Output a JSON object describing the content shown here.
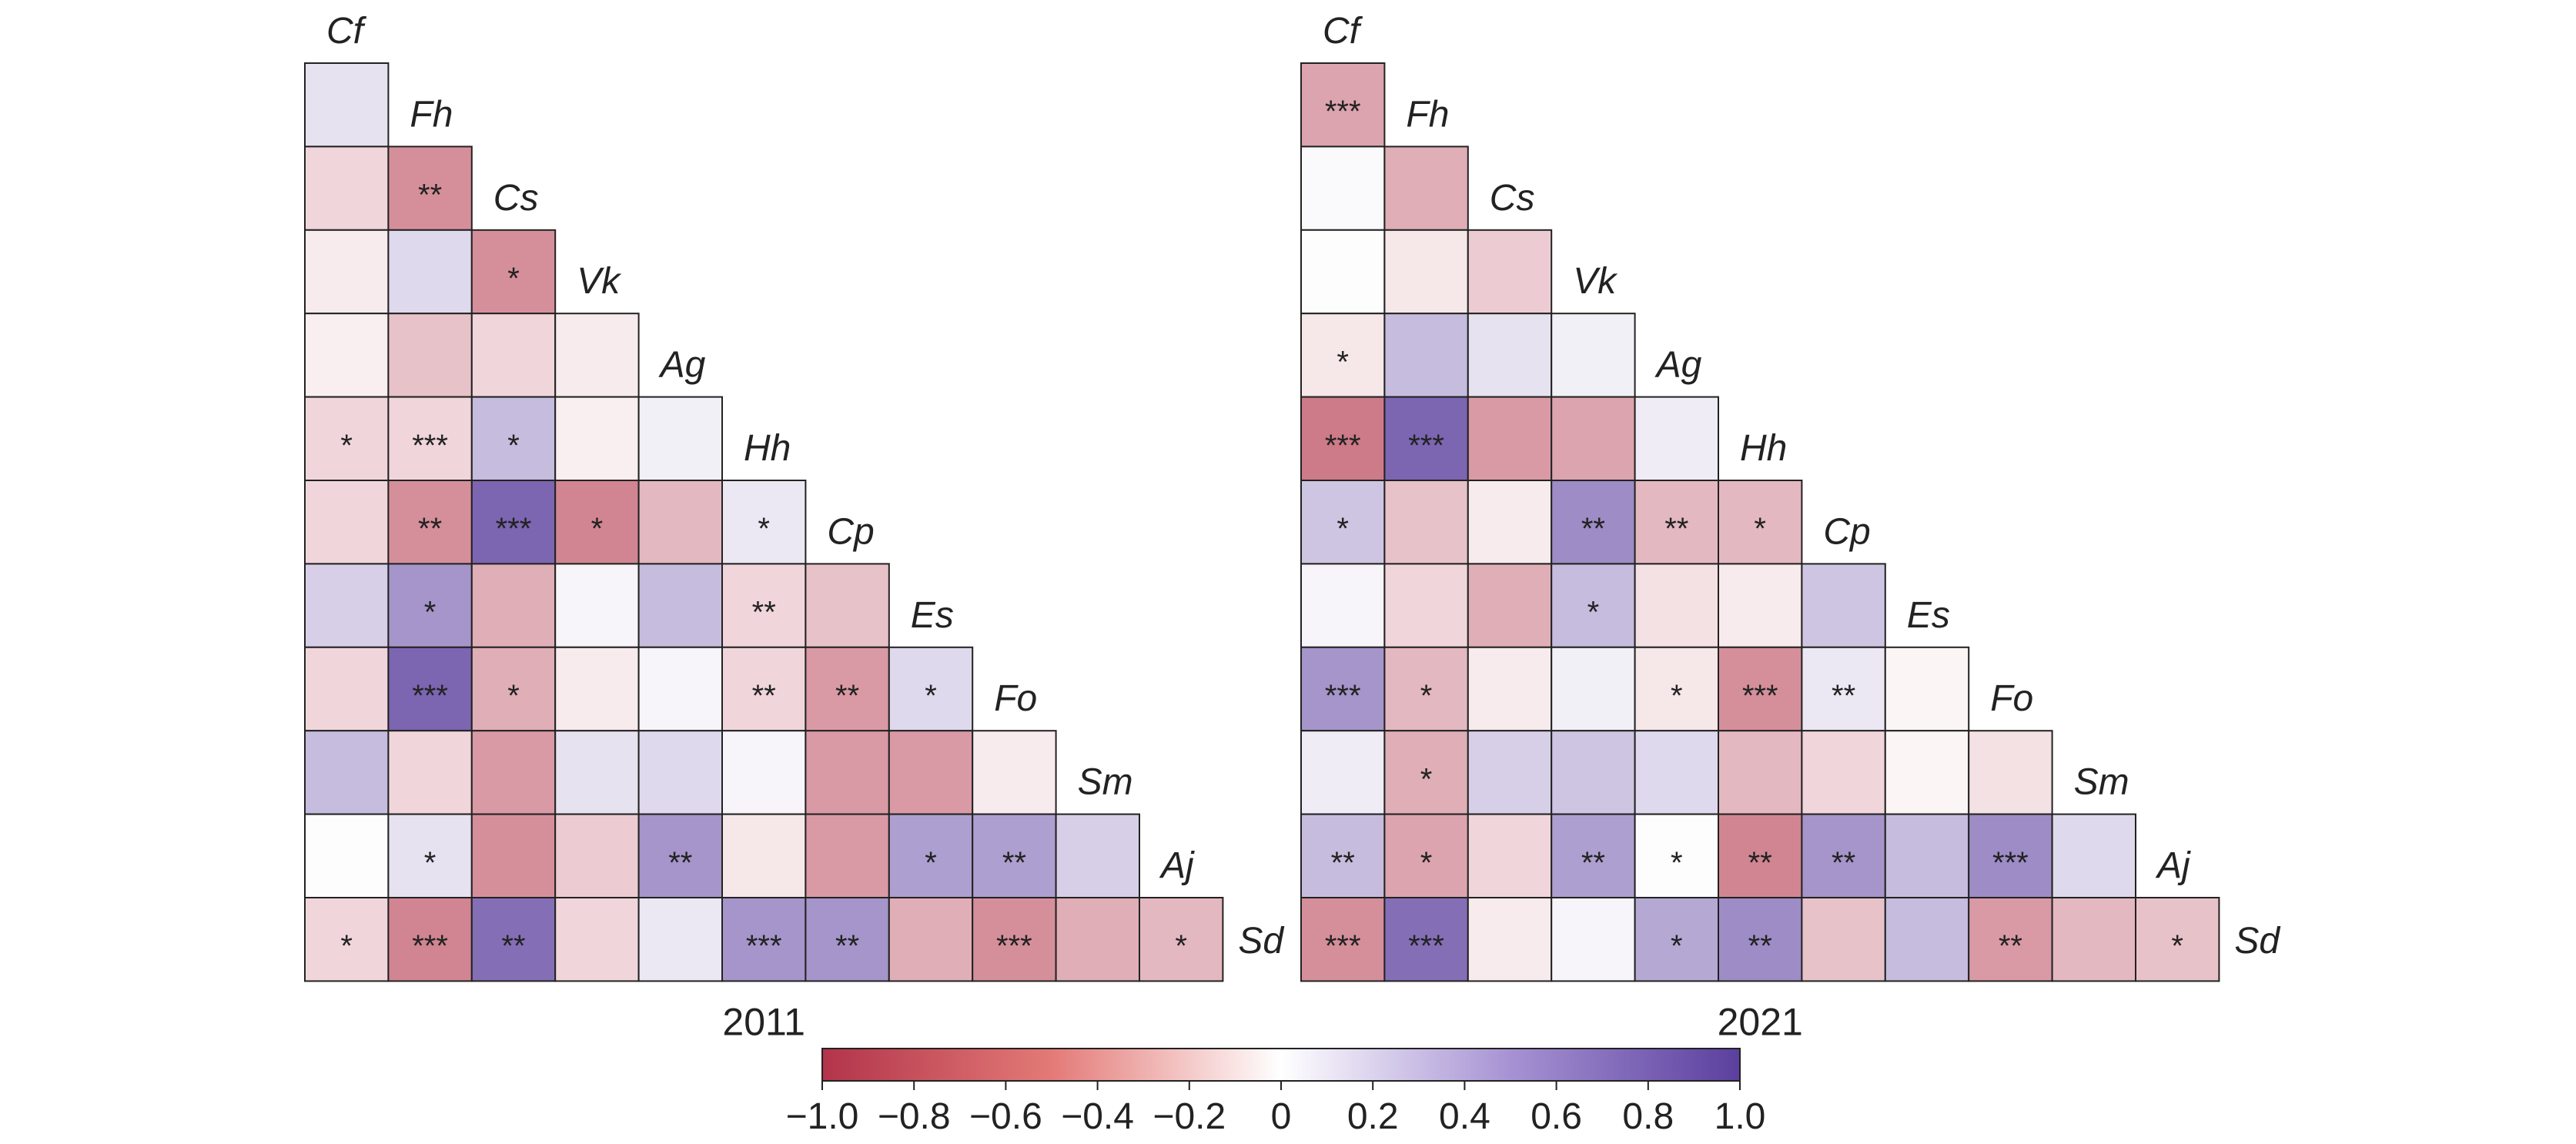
{
  "chart_data": [
    {
      "type": "heatmap",
      "title": "2011",
      "species_labels": [
        "Cf",
        "Fh",
        "Cs",
        "Vk",
        "Ag",
        "Hh",
        "Cp",
        "Es",
        "Fo",
        "Sm",
        "Aj",
        "Sd"
      ],
      "rows": [
        {
          "values": [
            0.15
          ],
          "stars": [
            ""
          ]
        },
        {
          "values": [
            -0.2,
            -0.55
          ],
          "stars": [
            "",
            "**"
          ]
        },
        {
          "values": [
            -0.1,
            0.2,
            -0.55
          ],
          "stars": [
            "",
            "",
            "*"
          ]
        },
        {
          "values": [
            -0.08,
            -0.3,
            -0.2,
            -0.1
          ],
          "stars": [
            "",
            "",
            "",
            ""
          ]
        },
        {
          "values": [
            -0.2,
            -0.2,
            0.35,
            -0.08,
            0.08
          ],
          "stars": [
            "*",
            "***",
            "*",
            "",
            ""
          ]
        },
        {
          "values": [
            -0.2,
            -0.55,
            0.8,
            -0.6,
            -0.35,
            0.12
          ],
          "stars": [
            "",
            "**",
            "***",
            "*",
            "",
            "*"
          ]
        },
        {
          "values": [
            0.25,
            0.55,
            -0.4,
            0.05,
            0.35,
            -0.2,
            -0.3
          ],
          "stars": [
            "",
            "*",
            "",
            "",
            "",
            "**",
            ""
          ]
        },
        {
          "values": [
            -0.2,
            0.8,
            -0.4,
            -0.1,
            0.05,
            -0.2,
            -0.5,
            0.2
          ],
          "stars": [
            "",
            "***",
            "*",
            "",
            "",
            "**",
            "**",
            "*"
          ]
        },
        {
          "values": [
            0.35,
            -0.2,
            -0.5,
            0.15,
            0.2,
            0.05,
            -0.5,
            -0.5,
            -0.1
          ],
          "stars": [
            "",
            "",
            "",
            "",
            "",
            "",
            "",
            "",
            ""
          ]
        },
        {
          "values": [
            0.01,
            0.15,
            -0.55,
            -0.25,
            0.55,
            -0.12,
            -0.5,
            0.5,
            0.5,
            0.25
          ],
          "stars": [
            "",
            "*",
            "",
            "",
            "**",
            "",
            "",
            "*",
            "**",
            ""
          ]
        },
        {
          "values": [
            -0.2,
            -0.6,
            0.75,
            -0.2,
            0.12,
            0.55,
            0.55,
            -0.4,
            -0.55,
            -0.4,
            -0.35
          ],
          "stars": [
            "*",
            "***",
            "**",
            "",
            "",
            "***",
            "**",
            "",
            "***",
            "",
            "*"
          ]
        }
      ]
    },
    {
      "type": "heatmap",
      "title": "2021",
      "species_labels": [
        "Cf",
        "Fh",
        "Cs",
        "Vk",
        "Ag",
        "Hh",
        "Cp",
        "Es",
        "Fo",
        "Sm",
        "Aj",
        "Sd"
      ],
      "rows": [
        {
          "values": [
            -0.45
          ],
          "stars": [
            "***"
          ]
        },
        {
          "values": [
            0.03,
            -0.4
          ],
          "stars": [
            "",
            ""
          ]
        },
        {
          "values": [
            0.01,
            -0.12,
            -0.25
          ],
          "stars": [
            "",
            "",
            ""
          ]
        },
        {
          "values": [
            -0.12,
            0.35,
            0.15,
            0.08
          ],
          "stars": [
            "*",
            "",
            "",
            ""
          ]
        },
        {
          "values": [
            -0.65,
            0.8,
            -0.5,
            -0.45,
            0.1
          ],
          "stars": [
            "***",
            "***",
            "",
            "",
            ""
          ]
        },
        {
          "values": [
            0.3,
            -0.3,
            -0.1,
            0.6,
            -0.35,
            -0.35
          ],
          "stars": [
            "*",
            "",
            "",
            "**",
            "**",
            "*"
          ]
        },
        {
          "values": [
            0.05,
            -0.2,
            -0.4,
            0.35,
            -0.15,
            -0.1,
            0.3
          ],
          "stars": [
            "",
            "",
            "",
            "*",
            "",
            "",
            ""
          ]
        },
        {
          "values": [
            0.55,
            -0.35,
            -0.1,
            0.08,
            -0.12,
            -0.55,
            0.12,
            -0.05
          ],
          "stars": [
            "***",
            "*",
            "",
            "",
            "*",
            "***",
            "**",
            ""
          ]
        },
        {
          "values": [
            0.1,
            -0.4,
            0.25,
            0.3,
            0.2,
            -0.35,
            -0.2,
            -0.05,
            -0.15
          ],
          "stars": [
            "",
            "*",
            "",
            "",
            "",
            "",
            "",
            "",
            ""
          ]
        },
        {
          "values": [
            0.35,
            -0.45,
            -0.2,
            0.5,
            0.01,
            -0.6,
            0.55,
            0.35,
            0.6,
            0.2
          ],
          "stars": [
            "**",
            "*",
            "",
            "**",
            "*",
            "**",
            "**",
            "",
            "***",
            ""
          ]
        },
        {
          "values": [
            -0.55,
            0.75,
            -0.1,
            0.05,
            0.45,
            0.6,
            -0.3,
            0.35,
            -0.5,
            -0.35,
            -0.3
          ],
          "stars": [
            "***",
            "***",
            "",
            "",
            "*",
            "**",
            "",
            "",
            "**",
            "",
            "*"
          ]
        }
      ]
    }
  ],
  "colorbar": {
    "range": [
      -1.0,
      1.0
    ],
    "ticks": [
      "−1.0",
      "−0.8",
      "−0.6",
      "−0.4",
      "−0.2",
      "0",
      "0.2",
      "0.4",
      "0.6",
      "0.8",
      "1.0"
    ],
    "colors": {
      "negative": "#b2344a",
      "zero": "#ffffff",
      "positive": "#5b3f9e"
    }
  }
}
